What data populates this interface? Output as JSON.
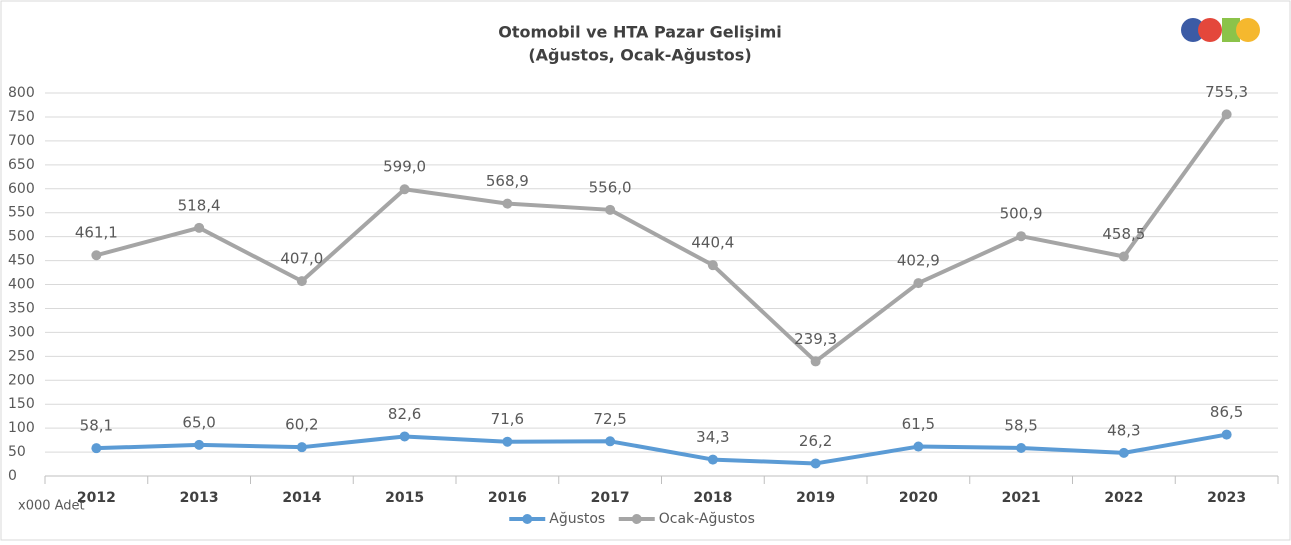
{
  "chart_data": {
    "type": "line",
    "title": "Otomobil ve HTA Pazar Gelişimi",
    "subtitle": "(Ağustos, Ocak-Ağustos)",
    "y_unit_label": "x000 Adet",
    "categories": [
      "2012",
      "2013",
      "2014",
      "2015",
      "2016",
      "2017",
      "2018",
      "2019",
      "2020",
      "2021",
      "2022",
      "2023"
    ],
    "series": [
      {
        "name": "Ağustos",
        "color": "#5b9bd5",
        "values": [
          58.1,
          65.0,
          60.2,
          82.6,
          71.6,
          72.5,
          34.3,
          26.2,
          61.5,
          58.5,
          48.3,
          86.5
        ],
        "value_labels": [
          "58,1",
          "65,0",
          "60,2",
          "82,6",
          "71,6",
          "72,5",
          "34,3",
          "26,2",
          "61,5",
          "58,5",
          "48,3",
          "86,5"
        ]
      },
      {
        "name": "Ocak-Ağustos",
        "color": "#a5a5a5",
        "values": [
          461.1,
          518.4,
          407.0,
          599.0,
          568.9,
          556.0,
          440.4,
          239.3,
          402.9,
          500.9,
          458.5,
          755.3
        ],
        "value_labels": [
          "461,1",
          "518,4",
          "407,0",
          "599,0",
          "568,9",
          "556,0",
          "440,4",
          "239,3",
          "402,9",
          "500,9",
          "458,5",
          "755,3"
        ]
      }
    ],
    "ylim": [
      0,
      800
    ],
    "yticks": [
      0,
      50,
      100,
      150,
      200,
      250,
      300,
      350,
      400,
      450,
      500,
      550,
      600,
      650,
      700,
      750,
      800
    ],
    "grid": true,
    "legend": "bottom"
  }
}
